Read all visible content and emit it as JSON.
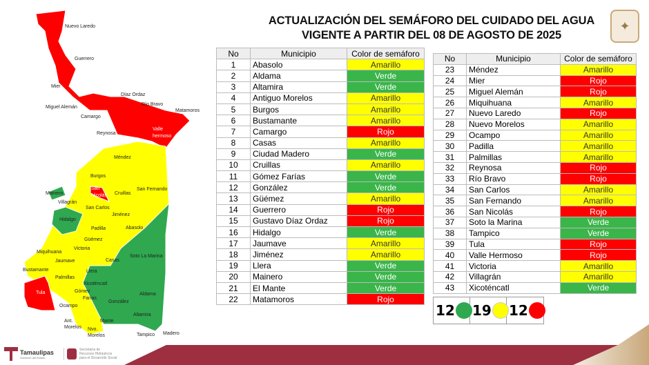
{
  "title": {
    "line1": "ACTUALIZACIÓN DEL SEMÁFORO DEL CUIDADO DEL AGUA",
    "line2": "VIGENTE A PARTIR DEL 08 DE AGOSTO DE 2025"
  },
  "headers": {
    "no": "No",
    "municipio": "Municipio",
    "color": "Color de semáforo"
  },
  "colors": {
    "Amarillo": "#ffff00",
    "Verde": "#3ab54a",
    "Rojo": "#ff0000"
  },
  "table_left": [
    [
      "1",
      "Abasolo",
      "Amarillo"
    ],
    [
      "2",
      "Aldama",
      "Verde"
    ],
    [
      "3",
      "Altamira",
      "Verde"
    ],
    [
      "4",
      "Antiguo Morelos",
      "Amarillo"
    ],
    [
      "5",
      "Burgos",
      "Amarillo"
    ],
    [
      "6",
      "Bustamante",
      "Amarillo"
    ],
    [
      "7",
      "Camargo",
      "Rojo"
    ],
    [
      "8",
      "Casas",
      "Amarillo"
    ],
    [
      "9",
      "Ciudad Madero",
      "Verde"
    ],
    [
      "10",
      "Cruillas",
      "Amarillo"
    ],
    [
      "11",
      "Gómez Farías",
      "Verde"
    ],
    [
      "12",
      "González",
      "Verde"
    ],
    [
      "13",
      "Güémez",
      "Amarillo"
    ],
    [
      "14",
      "Guerrero",
      "Rojo"
    ],
    [
      "15",
      "Gustavo Díaz Ordaz",
      "Rojo"
    ],
    [
      "16",
      "Hidalgo",
      "Verde"
    ],
    [
      "17",
      "Jaumave",
      "Amarillo"
    ],
    [
      "18",
      "Jiménez",
      "Amarillo"
    ],
    [
      "19",
      "Llera",
      "Verde"
    ],
    [
      "20",
      "Mainero",
      "Verde"
    ],
    [
      "21",
      "El Mante",
      "Verde"
    ],
    [
      "22",
      "Matamoros",
      "Rojo"
    ]
  ],
  "table_right": [
    [
      "23",
      "Méndez",
      "Amarillo"
    ],
    [
      "24",
      "Mier",
      "Rojo"
    ],
    [
      "25",
      "Miguel Alemán",
      "Rojo"
    ],
    [
      "26",
      "Miquihuana",
      "Amarillo"
    ],
    [
      "27",
      "Nuevo Laredo",
      "Rojo"
    ],
    [
      "28",
      "Nuevo Morelos",
      "Amarillo"
    ],
    [
      "29",
      "Ocampo",
      "Amarillo"
    ],
    [
      "30",
      "Padilla",
      "Amarillo"
    ],
    [
      "31",
      "Palmillas",
      "Amarillo"
    ],
    [
      "32",
      "Reynosa",
      "Rojo"
    ],
    [
      "33",
      "Río Bravo",
      "Rojo"
    ],
    [
      "34",
      "San Carlos",
      "Amarillo"
    ],
    [
      "35",
      "San Fernando",
      "Amarillo"
    ],
    [
      "36",
      "San Nicolás",
      "Rojo"
    ],
    [
      "37",
      "Soto la Marina",
      "Verde"
    ],
    [
      "38",
      "Tampico",
      "Verde"
    ],
    [
      "39",
      "Tula",
      "Rojo"
    ],
    [
      "40",
      "Valle Hermoso",
      "Rojo"
    ],
    [
      "41",
      "Victoria",
      "Amarillo"
    ],
    [
      "42",
      "Villagrán",
      "Amarillo"
    ],
    [
      "43",
      "Xicoténcatl",
      "Verde"
    ]
  ],
  "counts": {
    "verde": "12",
    "amarillo": "19",
    "rojo": "12"
  },
  "map_labels": {
    "nuevo_laredo": "Nuevo Laredo",
    "guerrero": "Guerrero",
    "mier": "Mier",
    "diaz_ordaz": "Díaz Ordaz",
    "miguel_aleman": "Miguel Alemán",
    "camargo": "Camargo",
    "rio_bravo": "Río Bravo",
    "matamoros": "Matamoros",
    "reynosa": "Reynosa",
    "valle": "Valle",
    "hermoso": "hermoso",
    "mendez": "Méndez",
    "burgos": "Burgos",
    "san": "San",
    "nicolas": "Nicolás",
    "cruillas": "Cruillas",
    "san_fernando": "San Fernando",
    "mainero": "Mainero",
    "villagran": "Villagrán",
    "san_carlos": "San Carlos",
    "hidalgo": "Hidalgo",
    "jimenez": "Jiménez",
    "padilla": "Padilla",
    "abasolo": "Abasolo",
    "guemez": "Güémez",
    "miquihuana": "Miquihuana",
    "victoria": "Victoria",
    "soto": "Soto La Marina",
    "jaumave": "Jaumave",
    "casas": "Casas",
    "bustamante": "Bustamante",
    "palmillas": "Palmillas",
    "llera": "Llera",
    "xicotencatl": "Xicoténcatl",
    "tula": "Tula",
    "gomez": "Gómez",
    "farias": "Farías",
    "ocampo": "Ocampo",
    "gonzalez": "González",
    "aldama": "Aldama",
    "altamira": "Altamira",
    "mante": "Mante",
    "ant": "Ant.",
    "morelos": "Morelos",
    "nvo": "Nvo.",
    "morelos2": "Morelos",
    "tampico": "Tampico",
    "madero": "Madero"
  },
  "footer": {
    "brand": "Tamaulipas",
    "brand_sub": "Gobierno del Estado",
    "dept": [
      "Secretaría de",
      "Recursos Hidráulicos",
      "para el Desarrollo Social"
    ]
  }
}
